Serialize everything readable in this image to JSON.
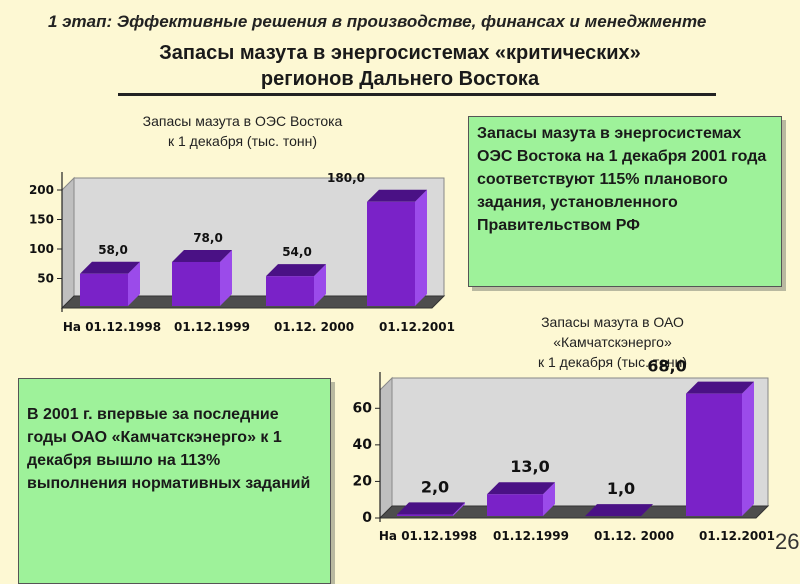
{
  "header": {
    "stage": "1 этап: Эффективные решения в производстве, финансах и менеджменте",
    "title_line1": "Запасы мазута в  энергосистемах «критических»",
    "title_line2": "регионов Дальнего Востока"
  },
  "textboxes": {
    "oes_note": "Запасы мазута в энергосистемах ОЭС Востока на 1 декабря 2001 года соответствуют 115% планового задания, установленного Правительством РФ",
    "kam_note": "В 2001 г. впервые за последние годы ОАО «Камчатскэнерго» к 1 декабря вышло на 113% выполнения нормативных заданий"
  },
  "page_number": "26",
  "chart_data": [
    {
      "type": "bar",
      "title_line1": "Запасы мазута в ОЭС Востока",
      "title_line2": "к 1 декабря (тыс. тонн)",
      "categories": [
        "На 01.12.1998",
        "01.12.1999",
        "01.12. 2000",
        "01.12.2001"
      ],
      "values": [
        58.0,
        78.0,
        54.0,
        180.0
      ],
      "value_labels": [
        "58,0",
        "78,0",
        "54,0",
        "180,0"
      ],
      "yticks": [
        50,
        100,
        150,
        200
      ],
      "ylim": [
        0,
        200
      ],
      "bar_color": "#7a22c8",
      "bar_side_color": "#9b4bea",
      "bar_top_color": "#4a1185"
    },
    {
      "type": "bar",
      "title_line1": "Запасы мазута в ОАО",
      "title_line2": "«Камчатскэнерго»",
      "title_line3": "к 1 декабря (тыс. тонн)",
      "categories": [
        "На 01.12.1998",
        "01.12.1999",
        "01.12. 2000",
        "01.12.2001"
      ],
      "values": [
        2.0,
        13.0,
        1.0,
        68.0
      ],
      "value_labels": [
        "2,0",
        "13,0",
        "1,0",
        "68,0"
      ],
      "yticks": [
        0,
        20,
        40,
        60
      ],
      "ylim": [
        0,
        70
      ],
      "bar_color": "#7a22c8",
      "bar_side_color": "#9b4bea",
      "bar_top_color": "#4a1185"
    }
  ]
}
